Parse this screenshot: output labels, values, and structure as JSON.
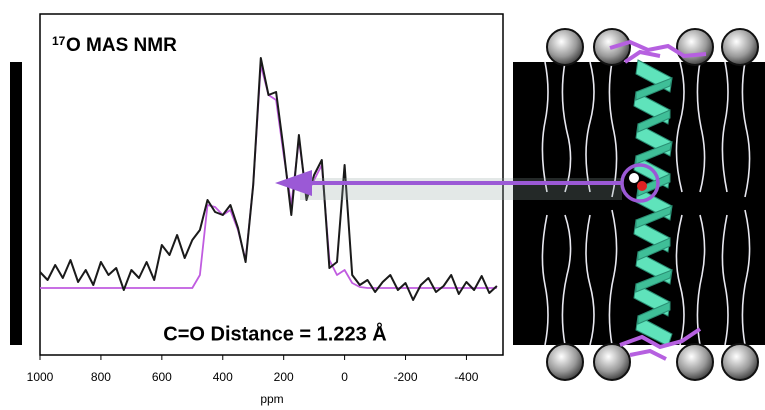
{
  "chart_data": {
    "type": "line",
    "title_superscript": "17",
    "title": "O MAS NMR",
    "annotation": "C=O Distance = 1.223 Å",
    "x_label": "ppm",
    "x": [
      1000,
      975,
      950,
      925,
      900,
      875,
      850,
      825,
      800,
      775,
      750,
      725,
      700,
      675,
      650,
      625,
      600,
      575,
      550,
      525,
      500,
      475,
      450,
      425,
      400,
      375,
      350,
      325,
      300,
      275,
      250,
      225,
      200,
      175,
      150,
      125,
      100,
      75,
      50,
      25,
      0,
      -25,
      -50,
      -75,
      -100,
      -125,
      -150,
      -175,
      -200,
      -225,
      -250,
      -275,
      -300,
      -325,
      -350,
      -375,
      -400,
      -425,
      -450,
      -475,
      -500
    ],
    "series": [
      {
        "color": "#1a1a1a",
        "values": [
          83,
          75,
          90,
          77,
          95,
          73,
          85,
          70,
          93,
          80,
          87,
          65,
          85,
          77,
          93,
          75,
          110,
          100,
          120,
          97,
          115,
          125,
          155,
          143,
          140,
          150,
          127,
          93,
          170,
          297,
          260,
          263,
          205,
          140,
          220,
          155,
          180,
          195,
          87,
          93,
          190,
          80,
          70,
          75,
          63,
          73,
          80,
          65,
          72,
          55,
          70,
          77,
          63,
          69,
          80,
          61,
          73,
          65,
          79,
          62,
          69
        ]
      },
      {
        "color": "#c05ce0",
        "values": [
          67,
          67,
          67,
          67,
          67,
          67,
          67,
          67,
          67,
          67,
          67,
          67,
          67,
          67,
          67,
          67,
          67,
          67,
          67,
          67,
          67,
          80,
          150,
          148,
          140,
          145,
          125,
          95,
          170,
          290,
          260,
          255,
          200,
          150,
          215,
          160,
          175,
          190,
          95,
          80,
          85,
          72,
          68,
          67,
          67,
          67,
          67,
          67,
          67,
          67,
          67,
          67,
          67,
          67,
          67,
          67,
          67,
          67,
          67,
          67,
          67
        ]
      }
    ],
    "xlim": [
      1000,
      -520
    ],
    "ylim": [
      0,
      341
    ],
    "xticks": [
      1000,
      800,
      600,
      400,
      200,
      0,
      -200,
      -400
    ]
  }
}
